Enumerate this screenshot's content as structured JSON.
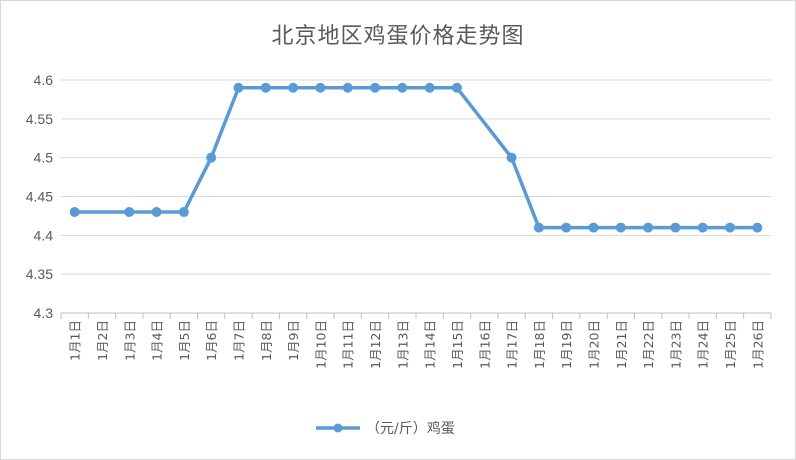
{
  "chart_data": {
    "type": "line",
    "title": "北京地区鸡蛋价格走势图",
    "categories": [
      "1月1日",
      "1月2日",
      "1月3日",
      "1月4日",
      "1月5日",
      "1月6日",
      "1月7日",
      "1月8日",
      "1月9日",
      "1月10日",
      "1月11日",
      "1月12日",
      "1月13日",
      "1月14日",
      "1月15日",
      "1月16日",
      "1月17日",
      "1月18日",
      "1月19日",
      "1月20日",
      "1月21日",
      "1月22日",
      "1月23日",
      "1月24日",
      "1月25日",
      "1月26日"
    ],
    "y_tick_labels": [
      "4.6",
      "4.55",
      "4.5",
      "4.45",
      "4.4",
      "4.35",
      "4.3"
    ],
    "ylim": [
      4.3,
      4.6
    ],
    "grid": true,
    "legend_position": "bottom",
    "series": [
      {
        "name": "（元/斤）鸡蛋",
        "color": "#5b9bd5",
        "values": [
          4.43,
          null,
          4.43,
          4.43,
          4.43,
          4.5,
          4.59,
          4.59,
          4.59,
          4.59,
          4.59,
          4.59,
          4.59,
          4.59,
          4.59,
          null,
          4.5,
          4.41,
          4.41,
          4.41,
          4.41,
          4.41,
          4.41,
          4.41,
          4.41,
          4.41
        ]
      }
    ]
  }
}
